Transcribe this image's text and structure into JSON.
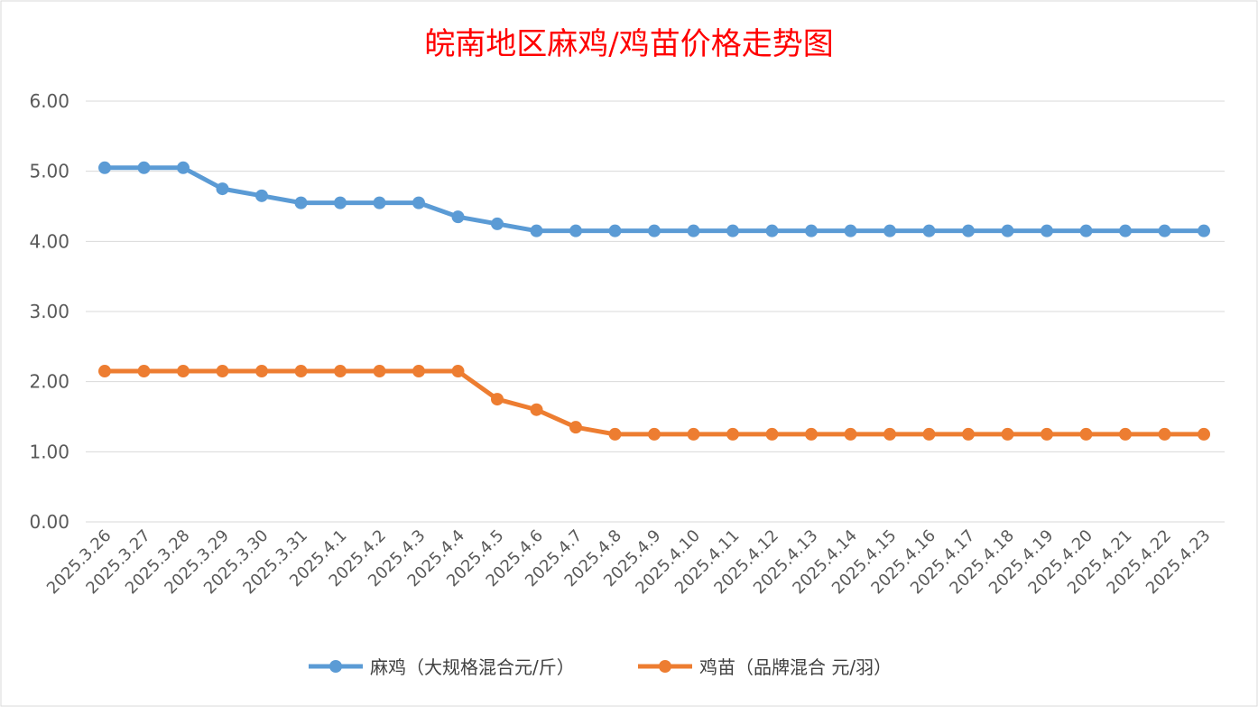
{
  "chart_data": {
    "type": "line",
    "title": "皖南地区麻鸡/鸡苗价格走势图",
    "xlabel": "",
    "ylabel": "",
    "ylim": [
      0,
      6
    ],
    "yticks": [
      "0.00",
      "1.00",
      "2.00",
      "3.00",
      "4.00",
      "5.00",
      "6.00"
    ],
    "grid": true,
    "legend_position": "bottom",
    "categories": [
      "2025.3.26",
      "2025.3.27",
      "2025.3.28",
      "2025.3.29",
      "2025.3.30",
      "2025.3.31",
      "2025.4.1",
      "2025.4.2",
      "2025.4.3",
      "2025.4.4",
      "2025.4.5",
      "2025.4.6",
      "2025.4.7",
      "2025.4.8",
      "2025.4.9",
      "2025.4.10",
      "2025.4.11",
      "2025.4.12",
      "2025.4.13",
      "2025.4.14",
      "2025.4.15",
      "2025.4.16",
      "2025.4.17",
      "2025.4.18",
      "2025.4.19",
      "2025.4.20",
      "2025.4.21",
      "2025.4.22",
      "2025.4.23"
    ],
    "series": [
      {
        "name": "麻鸡（大规格混合元/斤）",
        "color": "#5b9bd5",
        "values": [
          5.05,
          5.05,
          5.05,
          4.75,
          4.65,
          4.55,
          4.55,
          4.55,
          4.55,
          4.35,
          4.25,
          4.15,
          4.15,
          4.15,
          4.15,
          4.15,
          4.15,
          4.15,
          4.15,
          4.15,
          4.15,
          4.15,
          4.15,
          4.15,
          4.15,
          4.15,
          4.15,
          4.15,
          4.15
        ]
      },
      {
        "name": "鸡苗（品牌混合 元/羽）",
        "color": "#ed7d31",
        "values": [
          2.15,
          2.15,
          2.15,
          2.15,
          2.15,
          2.15,
          2.15,
          2.15,
          2.15,
          2.15,
          1.75,
          1.6,
          1.35,
          1.25,
          1.25,
          1.25,
          1.25,
          1.25,
          1.25,
          1.25,
          1.25,
          1.25,
          1.25,
          1.25,
          1.25,
          1.25,
          1.25,
          1.25,
          1.25
        ]
      }
    ]
  }
}
